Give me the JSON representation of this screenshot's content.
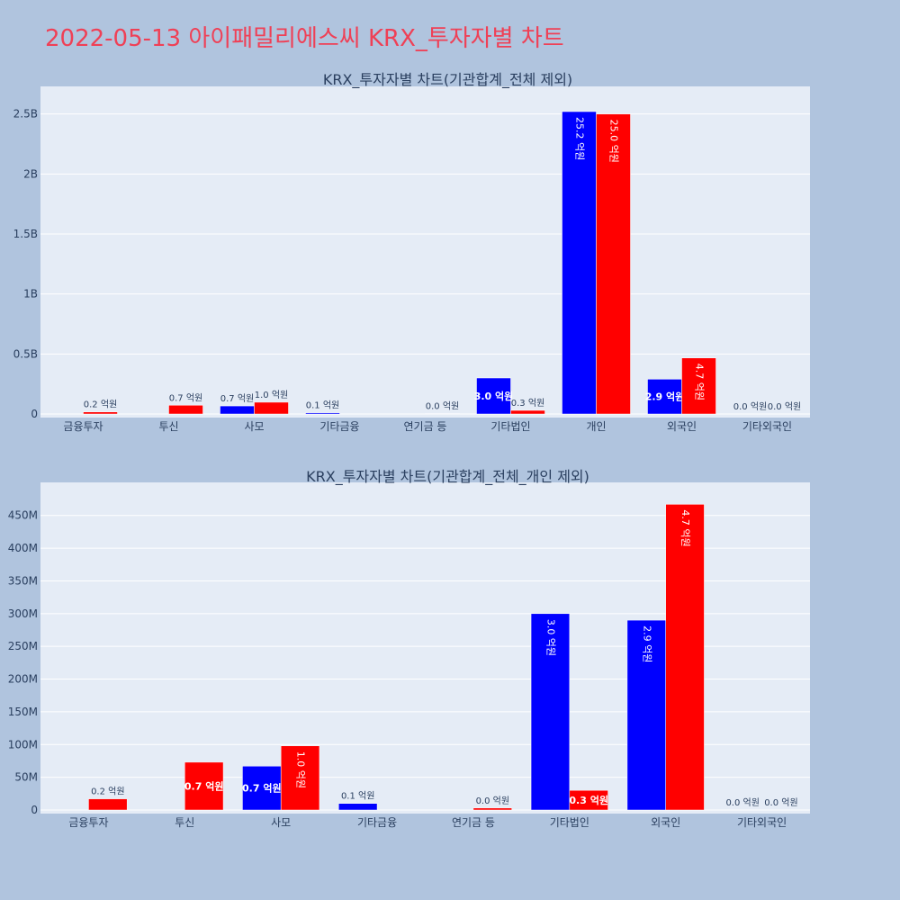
{
  "title": "2022-05-13 아이패밀리에스씨 KRX_투자자별 차트",
  "colors": {
    "background": "#b0c4de",
    "plot_bg": "#e5ecf6",
    "title": "#ef4056",
    "buy": "#0000ff",
    "sell": "#ff0000"
  },
  "chart_data": [
    {
      "type": "bar",
      "title": "KRX_투자자별 차트(기관합계_전체 제외)",
      "categories": [
        "금융투자",
        "투신",
        "사모",
        "기타금융",
        "연기금 등",
        "기타법인",
        "개인",
        "외국인",
        "기타외국인"
      ],
      "ylim": [
        0,
        2700000000
      ],
      "yticks": [
        {
          "v": 0,
          "t": "0"
        },
        {
          "v": 500000000,
          "t": "0.5B"
        },
        {
          "v": 1000000000,
          "t": "1B"
        },
        {
          "v": 1500000000,
          "t": "1.5B"
        },
        {
          "v": 2000000000,
          "t": "2B"
        },
        {
          "v": 2500000000,
          "t": "2.5B"
        }
      ],
      "grid": true,
      "series": [
        {
          "color": "#0000ff",
          "values": [
            0,
            0,
            67000000,
            10000000,
            0,
            300000000,
            2520000000,
            290000000,
            0
          ],
          "labels": [
            "",
            "",
            "0.7 억원",
            "0.1 억원",
            "",
            "3.0 억원",
            "25.2 억원",
            "2.9 억원",
            "0.0 억원"
          ]
        },
        {
          "color": "#ff0000",
          "values": [
            17000000,
            73000000,
            98000000,
            0,
            3000000,
            30000000,
            2500000000,
            467000000,
            0
          ],
          "labels": [
            "0.2 억원",
            "0.7 억원",
            "1.0 억원",
            "",
            "0.0 억원",
            "0.3 억원",
            "25.0 억원",
            "4.7 억원",
            "0.0 억원"
          ]
        }
      ]
    },
    {
      "type": "bar",
      "title": "KRX_투자자별 차트(기관합계_전체_개인 제외)",
      "categories": [
        "금융투자",
        "투신",
        "사모",
        "기타금융",
        "연기금 등",
        "기타법인",
        "외국인",
        "기타외국인"
      ],
      "ylim": [
        0,
        495000000
      ],
      "yticks": [
        {
          "v": 0,
          "t": "0"
        },
        {
          "v": 50000000,
          "t": "50M"
        },
        {
          "v": 100000000,
          "t": "100M"
        },
        {
          "v": 150000000,
          "t": "150M"
        },
        {
          "v": 200000000,
          "t": "200M"
        },
        {
          "v": 250000000,
          "t": "250M"
        },
        {
          "v": 300000000,
          "t": "300M"
        },
        {
          "v": 350000000,
          "t": "350M"
        },
        {
          "v": 400000000,
          "t": "400M"
        },
        {
          "v": 450000000,
          "t": "450M"
        }
      ],
      "grid": true,
      "series": [
        {
          "color": "#0000ff",
          "values": [
            0,
            0,
            67000000,
            10000000,
            0,
            300000000,
            290000000,
            0
          ],
          "labels": [
            "",
            "",
            "0.7 억원",
            "0.1 억원",
            "",
            "3.0 억원",
            "2.9 억원",
            "0.0 억원"
          ]
        },
        {
          "color": "#ff0000",
          "values": [
            17000000,
            73000000,
            98000000,
            0,
            3000000,
            30000000,
            467000000,
            0
          ],
          "labels": [
            "0.2 억원",
            "0.7 억원",
            "1.0 억원",
            "",
            "0.0 억원",
            "0.3 억원",
            "4.7 억원",
            "0.0 억원"
          ]
        }
      ]
    }
  ]
}
